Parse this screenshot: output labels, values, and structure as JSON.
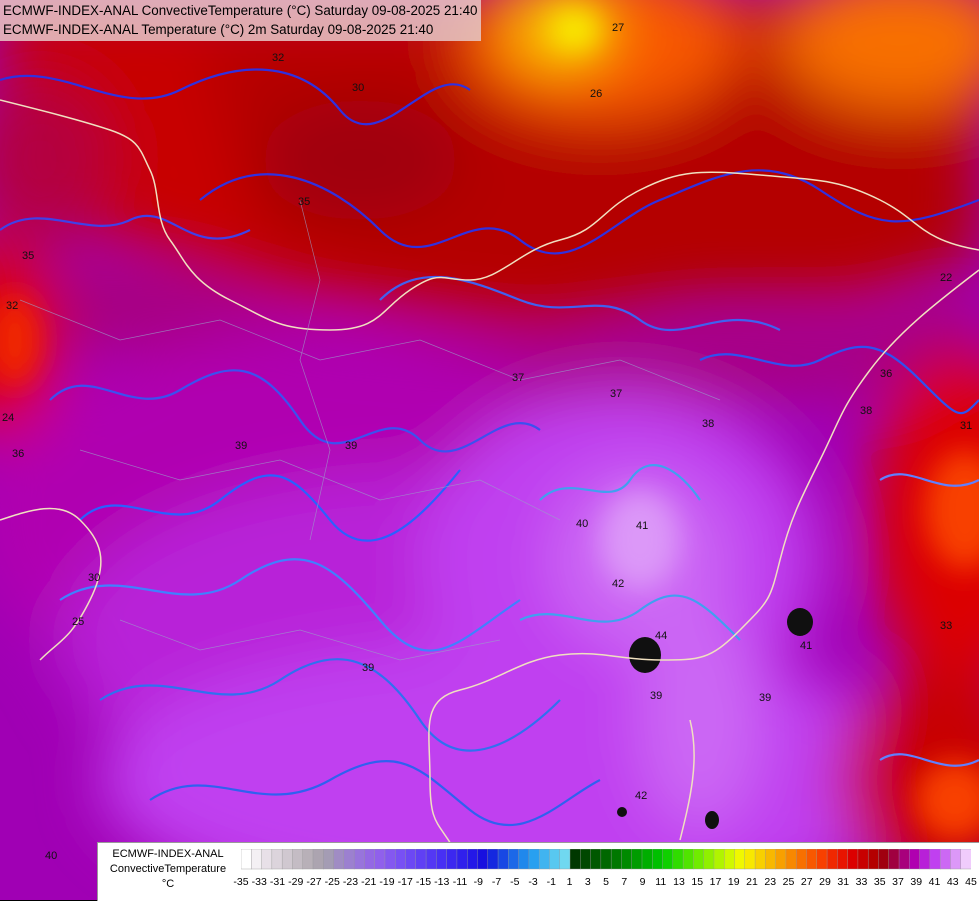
{
  "header": {
    "line1": "ECMWF-INDEX-ANAL ConvectiveTemperature (°C) Saturday 09-08-2025 21:40",
    "line2": "ECMWF-INDEX-ANAL Temperature (°C) 2m Saturday 09-08-2025 21:40"
  },
  "legend": {
    "model": "ECMWF-INDEX-ANAL",
    "parameter": "ConvectiveTemperature",
    "unit": "°C",
    "ticks": [
      "-35",
      "-33",
      "-31",
      "-29",
      "-27",
      "-25",
      "-23",
      "-21",
      "-19",
      "-17",
      "-15",
      "-13",
      "-11",
      "-9",
      "-7",
      "-5",
      "-3",
      "-1",
      "1",
      "3",
      "5",
      "7",
      "9",
      "11",
      "13",
      "15",
      "17",
      "19",
      "21",
      "23",
      "25",
      "27",
      "29",
      "31",
      "33",
      "35",
      "37",
      "39",
      "41",
      "43",
      "45"
    ],
    "palette": [
      "#ffffff",
      "#f4f0f4",
      "#e8e0e8",
      "#dcd4dc",
      "#d0c8d0",
      "#c4bcc4",
      "#b8b0b8",
      "#aca4b0",
      "#a49cb4",
      "#a08cc4",
      "#9c80d0",
      "#9874dc",
      "#9468e4",
      "#9060ec",
      "#8458f0",
      "#7850f4",
      "#6c48f4",
      "#6040f4",
      "#5438f4",
      "#4830f4",
      "#3c28f0",
      "#3020ec",
      "#2418e8",
      "#1810e0",
      "#1428e0",
      "#1848e4",
      "#1c68e8",
      "#2088ec",
      "#28a0f0",
      "#40b4f0",
      "#58c8f0",
      "#70d8f0",
      "#003800",
      "#004800",
      "#005800",
      "#006800",
      "#007800",
      "#008a00",
      "#009c00",
      "#00ae00",
      "#00c000",
      "#10d000",
      "#30dc00",
      "#50e400",
      "#70ec00",
      "#90f000",
      "#b0f400",
      "#d0f800",
      "#f0f800",
      "#f8e800",
      "#f8d000",
      "#f8b800",
      "#f8a000",
      "#f88800",
      "#f87000",
      "#f85800",
      "#f84000",
      "#f02800",
      "#e81400",
      "#dc0000",
      "#c80000",
      "#b40000",
      "#a00010",
      "#a00040",
      "#a8007c",
      "#b000b0",
      "#b820d8",
      "#c040f0",
      "#cc68f4",
      "#dc98f8",
      "#f0ccfc"
    ]
  },
  "map_labels": [
    {
      "text": "32"
    },
    {
      "text": "30"
    },
    {
      "text": "35"
    },
    {
      "text": "35"
    },
    {
      "text": "37"
    },
    {
      "text": "37"
    },
    {
      "text": "38"
    },
    {
      "text": "38"
    },
    {
      "text": "39"
    },
    {
      "text": "39"
    },
    {
      "text": "39"
    },
    {
      "text": "39"
    },
    {
      "text": "40"
    },
    {
      "text": "40"
    },
    {
      "text": "41"
    },
    {
      "text": "42"
    },
    {
      "text": "42"
    },
    {
      "text": "44"
    },
    {
      "text": "41"
    },
    {
      "text": "36"
    },
    {
      "text": "36"
    },
    {
      "text": "33"
    },
    {
      "text": "26"
    },
    {
      "text": "27"
    },
    {
      "text": "24"
    },
    {
      "text": "30"
    },
    {
      "text": "25"
    },
    {
      "text": "32"
    },
    {
      "text": "39"
    },
    {
      "text": "40"
    },
    {
      "text": "31"
    },
    {
      "text": "22"
    }
  ]
}
